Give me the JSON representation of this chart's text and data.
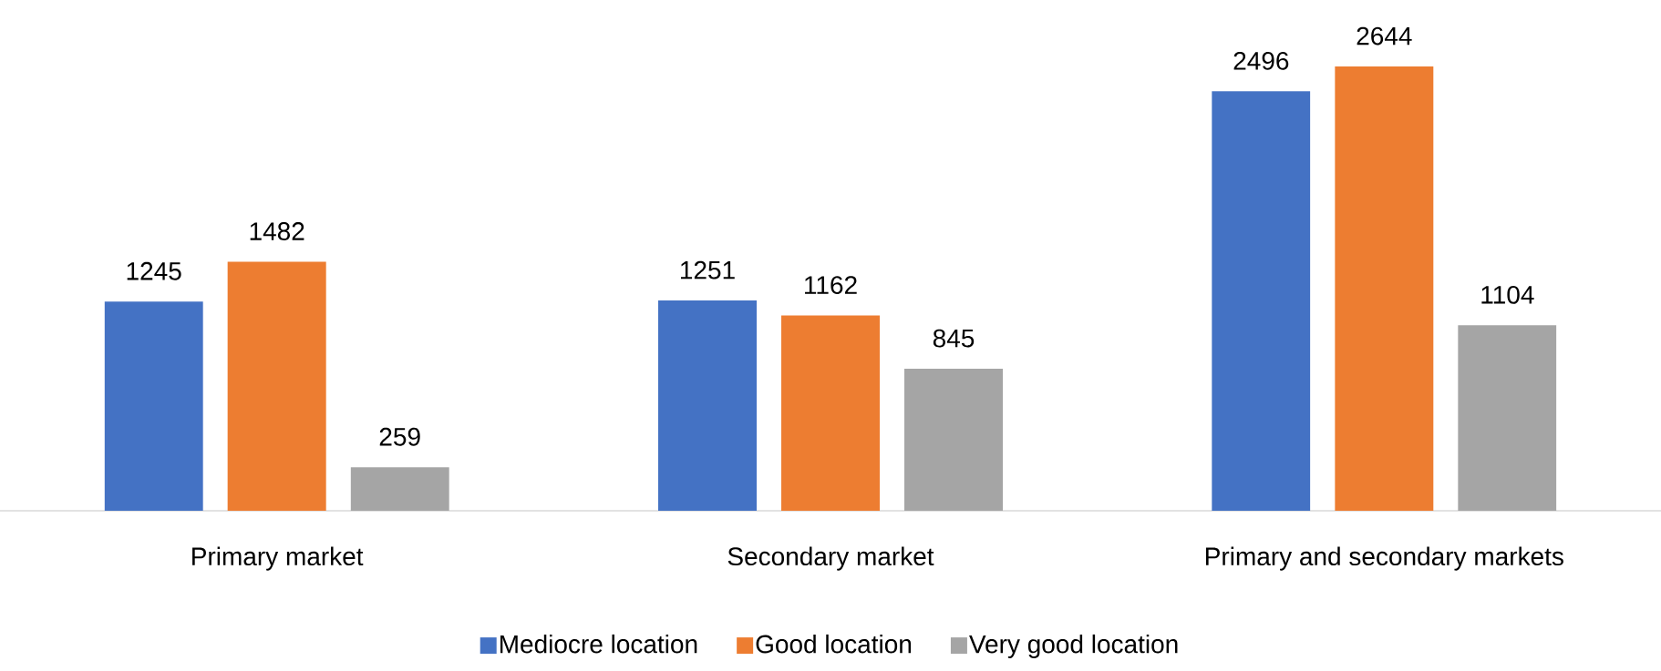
{
  "chart_data": {
    "type": "bar",
    "categories": [
      "Primary market",
      "Secondary market",
      "Primary and secondary markets"
    ],
    "series": [
      {
        "name": "Mediocre location",
        "color": "#4472c4",
        "values": [
          1245,
          1251,
          2496
        ],
        "value_labels": [
          "1245",
          "1251",
          "2496"
        ]
      },
      {
        "name": "Good location",
        "color": "#ed7d31",
        "values": [
          1482,
          1162,
          2644
        ],
        "value_labels": [
          "1482",
          "1162",
          "2644"
        ]
      },
      {
        "name": "Very good location",
        "color": "#a5a5a5",
        "values": [
          259,
          845,
          1104
        ],
        "value_labels": [
          "259",
          "845",
          "1104"
        ]
      }
    ],
    "legend": "bottom"
  }
}
